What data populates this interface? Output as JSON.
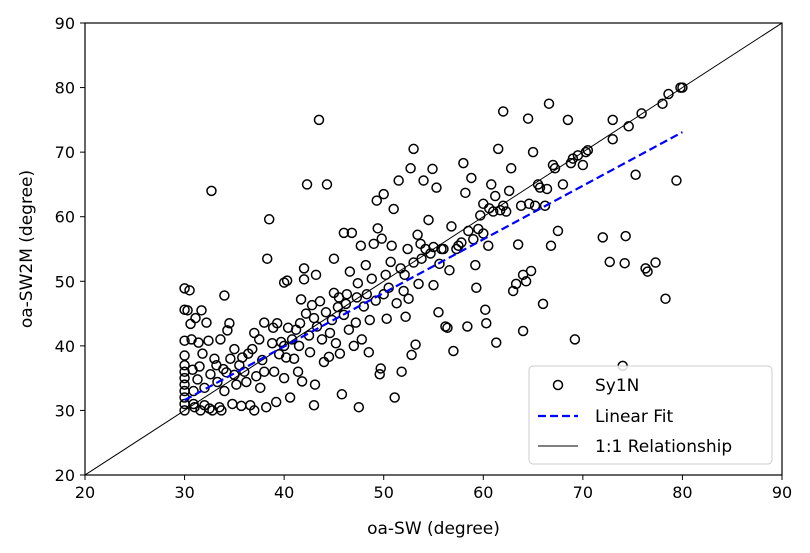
{
  "chart_data": {
    "type": "scatter",
    "title": "",
    "xlabel": "oa-SW (degree)",
    "ylabel": "oa-SW2M (degree)",
    "xlim": [
      20,
      90
    ],
    "ylim": [
      20,
      90
    ],
    "xticks": [
      "20",
      "30",
      "40",
      "50",
      "60",
      "70",
      "80",
      "90"
    ],
    "yticks": [
      "20",
      "30",
      "40",
      "50",
      "60",
      "70",
      "80",
      "90"
    ],
    "grid": false,
    "legend_position": "lower-right",
    "series": [
      {
        "name": "Sy1N",
        "kind": "scatter",
        "marker": "open-circle",
        "color": "#000000",
        "points": [
          [
            30,
            30
          ],
          [
            30,
            31
          ],
          [
            30,
            32
          ],
          [
            30,
            33
          ],
          [
            30,
            34
          ],
          [
            30,
            35
          ],
          [
            30,
            36
          ],
          [
            30,
            37
          ],
          [
            30,
            38.5
          ],
          [
            30,
            40.8
          ],
          [
            30,
            45.6
          ],
          [
            30,
            48.9
          ],
          [
            30.3,
            45.5
          ],
          [
            30.5,
            48.6
          ],
          [
            30.6,
            43.4
          ],
          [
            30.7,
            41
          ],
          [
            30.8,
            36.3
          ],
          [
            30.9,
            33
          ],
          [
            30.9,
            31
          ],
          [
            31,
            30.5
          ],
          [
            31.1,
            44.3
          ],
          [
            31.3,
            34.8
          ],
          [
            31.4,
            40.5
          ],
          [
            31.5,
            36.8
          ],
          [
            31.6,
            30
          ],
          [
            31.7,
            45.5
          ],
          [
            31.8,
            38.8
          ],
          [
            32,
            30.8
          ],
          [
            32,
            33.5
          ],
          [
            32.2,
            43.6
          ],
          [
            32.4,
            40.8
          ],
          [
            32.5,
            30.3
          ],
          [
            32.6,
            35.6
          ],
          [
            32.7,
            64
          ],
          [
            32.8,
            30
          ],
          [
            33,
            38
          ],
          [
            33.2,
            37
          ],
          [
            33.3,
            34.4
          ],
          [
            33.5,
            30.5
          ],
          [
            33.6,
            41
          ],
          [
            33.7,
            30
          ],
          [
            33.9,
            36.4
          ],
          [
            34,
            33
          ],
          [
            34,
            47.8
          ],
          [
            34.2,
            35.9
          ],
          [
            34.3,
            42.4
          ],
          [
            34.5,
            43.5
          ],
          [
            34.6,
            38
          ],
          [
            34.8,
            31
          ],
          [
            35,
            39.5
          ],
          [
            35,
            35.5
          ],
          [
            35.2,
            34
          ],
          [
            35.5,
            37
          ],
          [
            35.7,
            30.7
          ],
          [
            35.8,
            38.2
          ],
          [
            36,
            36
          ],
          [
            36.2,
            34.4
          ],
          [
            36.4,
            38.8
          ],
          [
            36.6,
            30.8
          ],
          [
            36.8,
            39.5
          ],
          [
            37,
            30
          ],
          [
            37,
            42
          ],
          [
            37.2,
            35.3
          ],
          [
            37.5,
            41
          ],
          [
            37.6,
            33.5
          ],
          [
            37.8,
            37.8
          ],
          [
            38,
            36
          ],
          [
            38,
            43.6
          ],
          [
            38.2,
            30.5
          ],
          [
            38.3,
            53.5
          ],
          [
            38.5,
            59.6
          ],
          [
            38.8,
            40.4
          ],
          [
            38.9,
            42.8
          ],
          [
            39,
            36
          ],
          [
            39.2,
            31.3
          ],
          [
            39.3,
            43.5
          ],
          [
            39.5,
            38.7
          ],
          [
            39.7,
            40.6
          ],
          [
            40,
            35
          ],
          [
            40,
            40
          ],
          [
            40,
            49.8
          ],
          [
            40.2,
            38.2
          ],
          [
            40.3,
            50.1
          ],
          [
            40.4,
            42.8
          ],
          [
            40.6,
            32
          ],
          [
            40.8,
            41
          ],
          [
            41,
            38
          ],
          [
            41.2,
            42.5
          ],
          [
            41.4,
            36
          ],
          [
            41.5,
            40
          ],
          [
            41.6,
            43.5
          ],
          [
            41.7,
            47.2
          ],
          [
            41.8,
            34.5
          ],
          [
            42,
            50.3
          ],
          [
            42,
            52
          ],
          [
            42.2,
            45
          ],
          [
            42.3,
            65
          ],
          [
            42.5,
            41.6
          ],
          [
            42.6,
            39
          ],
          [
            42.8,
            46.3
          ],
          [
            43,
            44.3
          ],
          [
            43,
            30.8
          ],
          [
            43.1,
            34
          ],
          [
            43.2,
            51
          ],
          [
            43.3,
            43
          ],
          [
            43.5,
            75
          ],
          [
            43.6,
            46.9
          ],
          [
            43.8,
            41
          ],
          [
            44,
            37.5
          ],
          [
            44.2,
            45.2
          ],
          [
            44.3,
            65
          ],
          [
            44.5,
            38.3
          ],
          [
            44.6,
            42
          ],
          [
            44.8,
            44
          ],
          [
            45,
            48.2
          ],
          [
            45,
            53.5
          ],
          [
            45.2,
            40.4
          ],
          [
            45.4,
            46
          ],
          [
            45.5,
            47.5
          ],
          [
            45.6,
            38.8
          ],
          [
            45.8,
            32.5
          ],
          [
            46,
            57.5
          ],
          [
            46,
            44.8
          ],
          [
            46.2,
            46.5
          ],
          [
            46.3,
            48
          ],
          [
            46.5,
            42.5
          ],
          [
            46.6,
            51.5
          ],
          [
            46.8,
            57.5
          ],
          [
            47,
            40
          ],
          [
            47.2,
            43.6
          ],
          [
            47.3,
            47.5
          ],
          [
            47.4,
            49.7
          ],
          [
            47.5,
            30.5
          ],
          [
            47.7,
            55.5
          ],
          [
            47.8,
            41
          ],
          [
            48,
            46.1
          ],
          [
            48.2,
            52.5
          ],
          [
            48.3,
            48
          ],
          [
            48.5,
            39
          ],
          [
            48.6,
            44
          ],
          [
            48.8,
            50.4
          ],
          [
            49,
            55.8
          ],
          [
            49.2,
            47
          ],
          [
            49.3,
            62.5
          ],
          [
            49.4,
            58.2
          ],
          [
            49.6,
            35.6
          ],
          [
            49.7,
            36.5
          ],
          [
            49.8,
            56.6
          ],
          [
            50,
            48
          ],
          [
            50,
            63.5
          ],
          [
            50.2,
            51
          ],
          [
            50.3,
            44.2
          ],
          [
            50.5,
            49
          ],
          [
            50.7,
            53
          ],
          [
            50.8,
            55.5
          ],
          [
            51,
            61.2
          ],
          [
            51.1,
            32
          ],
          [
            51.3,
            46.6
          ],
          [
            51.5,
            65.6
          ],
          [
            51.7,
            52
          ],
          [
            51.8,
            36
          ],
          [
            52,
            48.5
          ],
          [
            52.1,
            51
          ],
          [
            52.2,
            44.5
          ],
          [
            52.4,
            55
          ],
          [
            52.5,
            47.3
          ],
          [
            52.7,
            67.5
          ],
          [
            52.8,
            38.6
          ],
          [
            53,
            70.5
          ],
          [
            53,
            52.9
          ],
          [
            53.2,
            40.2
          ],
          [
            53.4,
            57.2
          ],
          [
            53.5,
            49.6
          ],
          [
            53.7,
            55.8
          ],
          [
            53.8,
            53.5
          ],
          [
            54,
            65.6
          ],
          [
            54.2,
            55
          ],
          [
            54.5,
            59.5
          ],
          [
            54.7,
            54.3
          ],
          [
            54.9,
            67.4
          ],
          [
            55,
            55.3
          ],
          [
            55,
            49.4
          ],
          [
            55.3,
            64.5
          ],
          [
            55.5,
            45.2
          ],
          [
            55.6,
            52.7
          ],
          [
            55.8,
            55
          ],
          [
            56,
            55
          ],
          [
            56.2,
            43
          ],
          [
            56.4,
            42.8
          ],
          [
            56.6,
            51.7
          ],
          [
            56.8,
            58.5
          ],
          [
            57,
            39.2
          ],
          [
            57.3,
            55
          ],
          [
            57.5,
            55.5
          ],
          [
            57.8,
            56
          ],
          [
            58,
            68.3
          ],
          [
            58.2,
            63.7
          ],
          [
            58.4,
            43
          ],
          [
            58.5,
            57.8
          ],
          [
            58.8,
            66
          ],
          [
            59,
            56.5
          ],
          [
            59.2,
            52.5
          ],
          [
            59.3,
            49
          ],
          [
            59.5,
            58.1
          ],
          [
            59.7,
            60.2
          ],
          [
            60,
            62
          ],
          [
            60,
            57.4
          ],
          [
            60.2,
            45.6
          ],
          [
            60.3,
            43.5
          ],
          [
            60.5,
            55.5
          ],
          [
            60.6,
            61.3
          ],
          [
            60.8,
            65
          ],
          [
            61,
            60.8
          ],
          [
            61.2,
            63.2
          ],
          [
            61.3,
            40.5
          ],
          [
            61.5,
            70.5
          ],
          [
            61.7,
            61
          ],
          [
            62,
            61.7
          ],
          [
            62,
            76.3
          ],
          [
            62.3,
            60.8
          ],
          [
            62.6,
            64
          ],
          [
            62.8,
            67.5
          ],
          [
            63,
            48.5
          ],
          [
            63.3,
            49.6
          ],
          [
            63.5,
            55.7
          ],
          [
            63.8,
            61.7
          ],
          [
            64,
            42.3
          ],
          [
            64,
            51
          ],
          [
            64.3,
            50
          ],
          [
            64.5,
            75.2
          ],
          [
            64.6,
            62
          ],
          [
            64.8,
            51.6
          ],
          [
            65,
            70
          ],
          [
            65.2,
            61.7
          ],
          [
            65.5,
            65
          ],
          [
            65.7,
            64.5
          ],
          [
            66,
            46.5
          ],
          [
            66.2,
            61.7
          ],
          [
            66.4,
            64.3
          ],
          [
            66.6,
            77.5
          ],
          [
            66.8,
            55.5
          ],
          [
            67,
            68
          ],
          [
            67.2,
            67.5
          ],
          [
            67.5,
            57.8
          ],
          [
            68,
            65
          ],
          [
            68.5,
            75
          ],
          [
            68.8,
            68.3
          ],
          [
            69,
            69
          ],
          [
            69.2,
            41
          ],
          [
            69.5,
            69.5
          ],
          [
            70,
            68
          ],
          [
            70.3,
            70
          ],
          [
            70.5,
            70.3
          ],
          [
            72,
            56.8
          ],
          [
            72.7,
            53
          ],
          [
            73,
            72
          ],
          [
            73,
            75
          ],
          [
            74,
            36.9
          ],
          [
            74.2,
            52.8
          ],
          [
            74.3,
            57
          ],
          [
            74.6,
            74
          ],
          [
            75.3,
            66.5
          ],
          [
            75.9,
            76
          ],
          [
            76.3,
            52
          ],
          [
            76.5,
            51.5
          ],
          [
            77.3,
            52.9
          ],
          [
            78,
            77.5
          ],
          [
            78.3,
            47.3
          ],
          [
            78.6,
            79
          ],
          [
            79.4,
            65.6
          ],
          [
            79.8,
            80
          ],
          [
            80,
            80
          ]
        ]
      },
      {
        "name": "Linear Fit",
        "kind": "line",
        "style": "dashed",
        "color": "#0000ff",
        "x": [
          30,
          80
        ],
        "y": [
          31.6,
          73.1
        ]
      },
      {
        "name": "1:1 Relationship",
        "kind": "line",
        "style": "solid",
        "color": "#000000",
        "x": [
          20,
          90
        ],
        "y": [
          20,
          90
        ]
      }
    ]
  }
}
